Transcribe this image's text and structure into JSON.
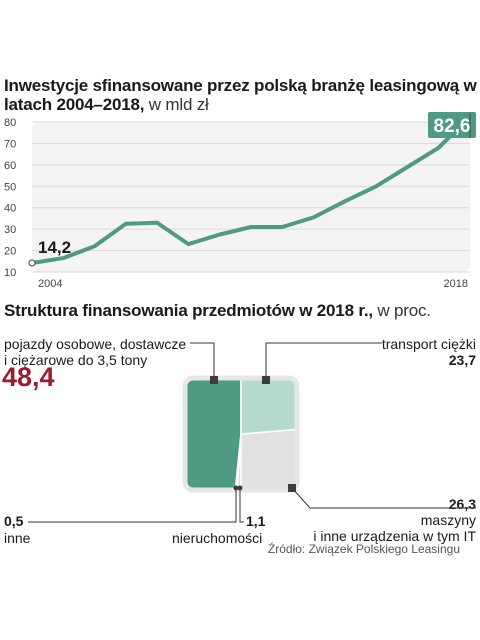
{
  "title1": {
    "bold": "Inwestycje sfinansowane przez polską branżę leasingową w latach 2004–2018,",
    "unit": " w mld zł"
  },
  "title2": {
    "bold": "Struktura finansowania przedmiotów w 2018 r.,",
    "unit": " w proc."
  },
  "source": "Źródło: Związek Polskiego Leasingu",
  "colors": {
    "line": "#4e9a82",
    "dark": "#4e9a82",
    "light": "#b5d9cd",
    "grey": "#e2e2e2"
  },
  "chart_data": [
    {
      "type": "line",
      "title": "Inwestycje sfinansowane przez polską branżę leasingową w latach 2004–2018, w mld zł",
      "x": [
        2004,
        2005,
        2006,
        2007,
        2008,
        2009,
        2010,
        2011,
        2012,
        2013,
        2014,
        2015,
        2016,
        2017,
        2018
      ],
      "values": [
        14.2,
        16.5,
        22.0,
        32.5,
        33.0,
        23.0,
        27.5,
        31.0,
        31.0,
        35.5,
        43.0,
        50.0,
        59.0,
        68.0,
        82.6
      ],
      "ylim": [
        10,
        80
      ],
      "yticks": [
        10,
        20,
        30,
        40,
        50,
        60,
        70,
        80
      ],
      "xtick_labels": [
        "2004",
        "2018"
      ],
      "start_label": "14,2",
      "end_label": "82,6",
      "grid": true
    },
    {
      "type": "pie",
      "title": "Struktura finansowania przedmiotów w 2018 r., w proc.",
      "slices": [
        {
          "label": "pojazdy osobowe, dostawcze i ciężarowe do 3,5 tony",
          "value": 48.4,
          "value_label": "48,4"
        },
        {
          "label": "transport ciężki",
          "value": 23.7,
          "value_label": "23,7"
        },
        {
          "label": "maszyny i inne urządzenia w tym IT",
          "value": 26.3,
          "value_label": "26,3"
        },
        {
          "label": "nieruchomości",
          "value": 1.1,
          "value_label": "1,1"
        },
        {
          "label": "inne",
          "value": 0.5,
          "value_label": "0,5"
        }
      ]
    }
  ],
  "labels": {
    "cars_line1": "pojazdy osobowe, dostawcze",
    "cars_line2": "i ciężarowe do 3,5 tony",
    "heavy": "transport ciężki",
    "machines_line1": "maszyny",
    "machines_line2": "i inne urządzenia w tym IT",
    "realestate": "nieruchomości",
    "other": "inne"
  }
}
